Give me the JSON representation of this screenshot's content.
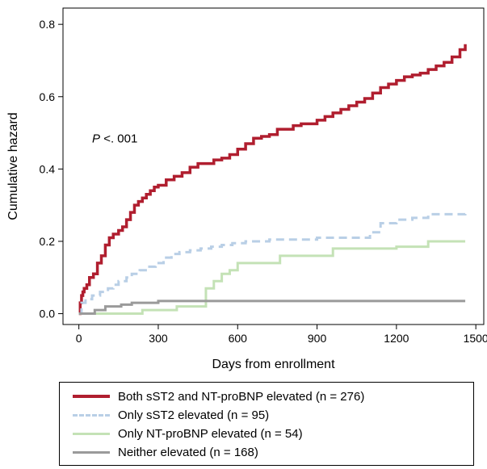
{
  "chart_data": {
    "type": "line",
    "step": true,
    "xlabel": "Days from enrollment",
    "ylabel": "Cumulative hazard",
    "xlim": [
      -60,
      1530
    ],
    "ylim": [
      -0.03,
      0.845
    ],
    "xticks": [
      0,
      300,
      600,
      900,
      1200,
      1500
    ],
    "yticks": [
      0.0,
      0.2,
      0.4,
      0.6,
      0.8
    ],
    "ytick_labels": [
      "0.0",
      "0.2",
      "0.4",
      "0.6",
      "0.8"
    ],
    "grid": false,
    "annotation": {
      "italic": "P",
      "rest": " <. 001",
      "x": 50,
      "y": 0.485
    },
    "legend": {
      "placement": "bottom",
      "boxed": true
    },
    "series": [
      {
        "name": "Both sST2 and NT-proBNP elevated (n = 276)",
        "color": "#b01e2f",
        "style": "solid",
        "points": [
          [
            0,
            0.0
          ],
          [
            5,
            0.03
          ],
          [
            10,
            0.05
          ],
          [
            15,
            0.06
          ],
          [
            20,
            0.07
          ],
          [
            30,
            0.08
          ],
          [
            40,
            0.1
          ],
          [
            55,
            0.11
          ],
          [
            70,
            0.14
          ],
          [
            85,
            0.16
          ],
          [
            100,
            0.19
          ],
          [
            115,
            0.21
          ],
          [
            130,
            0.22
          ],
          [
            150,
            0.23
          ],
          [
            165,
            0.24
          ],
          [
            180,
            0.26
          ],
          [
            195,
            0.28
          ],
          [
            210,
            0.3
          ],
          [
            225,
            0.31
          ],
          [
            240,
            0.32
          ],
          [
            255,
            0.33
          ],
          [
            270,
            0.34
          ],
          [
            285,
            0.35
          ],
          [
            300,
            0.355
          ],
          [
            330,
            0.37
          ],
          [
            360,
            0.38
          ],
          [
            390,
            0.39
          ],
          [
            420,
            0.405
          ],
          [
            450,
            0.415
          ],
          [
            480,
            0.415
          ],
          [
            510,
            0.425
          ],
          [
            540,
            0.43
          ],
          [
            570,
            0.44
          ],
          [
            600,
            0.455
          ],
          [
            630,
            0.47
          ],
          [
            660,
            0.485
          ],
          [
            690,
            0.49
          ],
          [
            720,
            0.495
          ],
          [
            750,
            0.51
          ],
          [
            780,
            0.51
          ],
          [
            810,
            0.52
          ],
          [
            840,
            0.525
          ],
          [
            870,
            0.525
          ],
          [
            900,
            0.535
          ],
          [
            930,
            0.545
          ],
          [
            960,
            0.555
          ],
          [
            990,
            0.565
          ],
          [
            1020,
            0.575
          ],
          [
            1050,
            0.585
          ],
          [
            1080,
            0.595
          ],
          [
            1110,
            0.61
          ],
          [
            1140,
            0.625
          ],
          [
            1170,
            0.635
          ],
          [
            1200,
            0.645
          ],
          [
            1230,
            0.655
          ],
          [
            1260,
            0.66
          ],
          [
            1290,
            0.665
          ],
          [
            1320,
            0.675
          ],
          [
            1350,
            0.685
          ],
          [
            1380,
            0.695
          ],
          [
            1410,
            0.71
          ],
          [
            1440,
            0.73
          ],
          [
            1460,
            0.745
          ]
        ]
      },
      {
        "name": "Only sST2 elevated (n = 95)",
        "color": "#b9cfe6",
        "style": "dashed",
        "points": [
          [
            0,
            0.0
          ],
          [
            10,
            0.03
          ],
          [
            25,
            0.04
          ],
          [
            50,
            0.05
          ],
          [
            80,
            0.06
          ],
          [
            110,
            0.07
          ],
          [
            130,
            0.08
          ],
          [
            150,
            0.09
          ],
          [
            180,
            0.1
          ],
          [
            200,
            0.11
          ],
          [
            230,
            0.12
          ],
          [
            260,
            0.13
          ],
          [
            290,
            0.14
          ],
          [
            320,
            0.155
          ],
          [
            350,
            0.165
          ],
          [
            380,
            0.17
          ],
          [
            420,
            0.175
          ],
          [
            460,
            0.18
          ],
          [
            500,
            0.185
          ],
          [
            540,
            0.19
          ],
          [
            580,
            0.195
          ],
          [
            630,
            0.2
          ],
          [
            720,
            0.205
          ],
          [
            900,
            0.21
          ],
          [
            1100,
            0.225
          ],
          [
            1140,
            0.25
          ],
          [
            1200,
            0.26
          ],
          [
            1260,
            0.265
          ],
          [
            1320,
            0.275
          ],
          [
            1460,
            0.28
          ]
        ]
      },
      {
        "name": "Only NT-proBNP elevated (n = 54)",
        "color": "#c4e2b6",
        "style": "solid",
        "points": [
          [
            0,
            0.0
          ],
          [
            240,
            0.01
          ],
          [
            370,
            0.02
          ],
          [
            480,
            0.07
          ],
          [
            510,
            0.09
          ],
          [
            540,
            0.11
          ],
          [
            570,
            0.12
          ],
          [
            600,
            0.14
          ],
          [
            760,
            0.16
          ],
          [
            960,
            0.18
          ],
          [
            1200,
            0.185
          ],
          [
            1320,
            0.2
          ],
          [
            1460,
            0.2
          ]
        ]
      },
      {
        "name": "Neither elevated (n = 168)",
        "color": "#9a9a9a",
        "style": "solid",
        "points": [
          [
            0,
            0.0
          ],
          [
            60,
            0.01
          ],
          [
            100,
            0.02
          ],
          [
            160,
            0.025
          ],
          [
            200,
            0.03
          ],
          [
            300,
            0.035
          ],
          [
            360,
            0.035
          ],
          [
            1460,
            0.035
          ]
        ]
      }
    ]
  }
}
